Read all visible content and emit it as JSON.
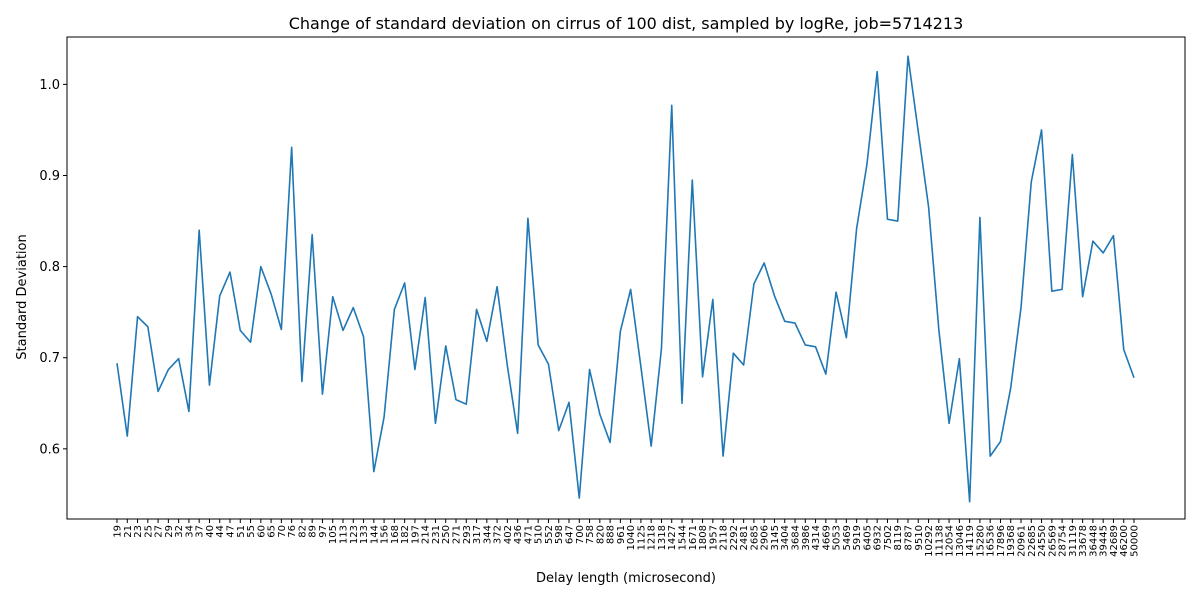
{
  "chart_data": {
    "type": "line",
    "title": "Change of standard deviation on cirrus of 100 dist, sampled by logRe, job=5714213",
    "xlabel": "Delay length (microsecond)",
    "ylabel": "Standard Deviation",
    "ylim": [
      0.523,
      1.052
    ],
    "yticks": [
      "0.6",
      "0.7",
      "0.8",
      "0.9",
      "1.0"
    ],
    "grid": false,
    "color": "#1f77b4",
    "categories": [
      "19",
      "21",
      "23",
      "25",
      "27",
      "29",
      "32",
      "34",
      "37",
      "40",
      "44",
      "47",
      "51",
      "55",
      "60",
      "65",
      "70",
      "76",
      "82",
      "89",
      "97",
      "105",
      "113",
      "123",
      "133",
      "144",
      "156",
      "168",
      "182",
      "197",
      "214",
      "231",
      "250",
      "271",
      "293",
      "317",
      "344",
      "372",
      "402",
      "436",
      "471",
      "510",
      "552",
      "598",
      "647",
      "700",
      "758",
      "820",
      "888",
      "961",
      "1040",
      "1125",
      "1218",
      "1318",
      "1427",
      "1544",
      "1671",
      "1808",
      "1957",
      "2118",
      "2292",
      "2481",
      "2685",
      "2906",
      "3145",
      "3404",
      "3684",
      "3986",
      "4314",
      "4669",
      "5053",
      "5469",
      "5919",
      "6405",
      "6932",
      "7502",
      "8119",
      "8787",
      "9510",
      "10292",
      "11138",
      "12054",
      "13046",
      "14119",
      "15280",
      "16536",
      "17896",
      "19368",
      "20961",
      "22685",
      "24550",
      "26569",
      "28754",
      "31119",
      "33678",
      "36448",
      "39445",
      "42689",
      "46200",
      "50000"
    ],
    "values": [
      0.694,
      0.614,
      0.745,
      0.734,
      0.663,
      0.687,
      0.699,
      0.641,
      0.84,
      0.67,
      0.768,
      0.794,
      0.73,
      0.717,
      0.8,
      0.77,
      0.731,
      0.931,
      0.674,
      0.835,
      0.66,
      0.767,
      0.73,
      0.755,
      0.723,
      0.575,
      0.635,
      0.753,
      0.782,
      0.687,
      0.766,
      0.628,
      0.713,
      0.654,
      0.649,
      0.753,
      0.718,
      0.778,
      0.691,
      0.617,
      0.853,
      0.714,
      0.693,
      0.62,
      0.651,
      0.546,
      0.687,
      0.638,
      0.607,
      0.729,
      0.775,
      0.69,
      0.603,
      0.71,
      0.977,
      0.65,
      0.895,
      0.679,
      0.764,
      0.592,
      0.705,
      0.692,
      0.781,
      0.804,
      0.768,
      0.74,
      0.738,
      0.714,
      0.712,
      0.682,
      0.772,
      0.722,
      0.842,
      0.912,
      1.014,
      0.852,
      0.85,
      1.031,
      0.948,
      0.866,
      0.731,
      0.628,
      0.699,
      0.542,
      0.854,
      0.592,
      0.608,
      0.667,
      0.755,
      0.893,
      0.95,
      0.773,
      0.775,
      0.923,
      0.767,
      0.828,
      0.815,
      0.834,
      0.709,
      0.678
    ]
  }
}
